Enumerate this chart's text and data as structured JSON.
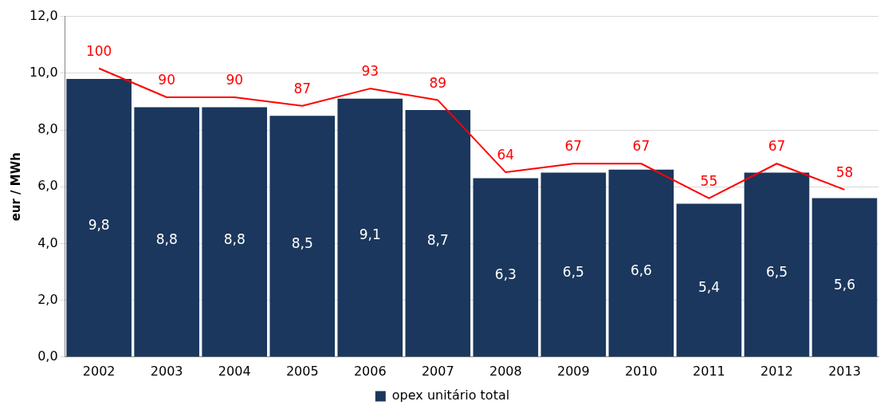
{
  "chart_data": {
    "type": "bar",
    "ylabel": "eur / MWh",
    "categories": [
      "2002",
      "2003",
      "2004",
      "2005",
      "2006",
      "2007",
      "2008",
      "2009",
      "2010",
      "2011",
      "2012",
      "2013"
    ],
    "series": [
      {
        "name": "opex unitário total",
        "color": "#1b375d",
        "values": [
          9.8,
          8.8,
          8.8,
          8.5,
          9.1,
          8.7,
          6.3,
          6.5,
          6.6,
          5.4,
          6.5,
          5.6
        ],
        "value_labels": [
          "9,8",
          "8,8",
          "8,8",
          "8,5",
          "9,1",
          "8,7",
          "6,3",
          "6,5",
          "6,6",
          "5,4",
          "6,5",
          "5,6"
        ]
      },
      {
        "type": "line",
        "axis": "y2",
        "color": "#ff0000",
        "values": [
          100,
          90,
          90,
          87,
          93,
          89,
          64,
          67,
          67,
          55,
          67,
          58
        ],
        "value_labels": [
          "100",
          "90",
          "90",
          "87",
          "93",
          "89",
          "64",
          "67",
          "67",
          "55",
          "67",
          "58"
        ]
      }
    ],
    "ylim": [
      0,
      12
    ],
    "yticks": [
      {
        "value": 0,
        "label": "0,0"
      },
      {
        "value": 2,
        "label": "2,0"
      },
      {
        "value": 4,
        "label": "4,0"
      },
      {
        "value": 6,
        "label": "6,0"
      },
      {
        "value": 8,
        "label": "8,0"
      },
      {
        "value": 10,
        "label": "10,0"
      },
      {
        "value": 12,
        "label": "12,0"
      }
    ],
    "y2lim": [
      0,
      118
    ],
    "grid": "y",
    "legend": "bottom",
    "marker": "none"
  }
}
